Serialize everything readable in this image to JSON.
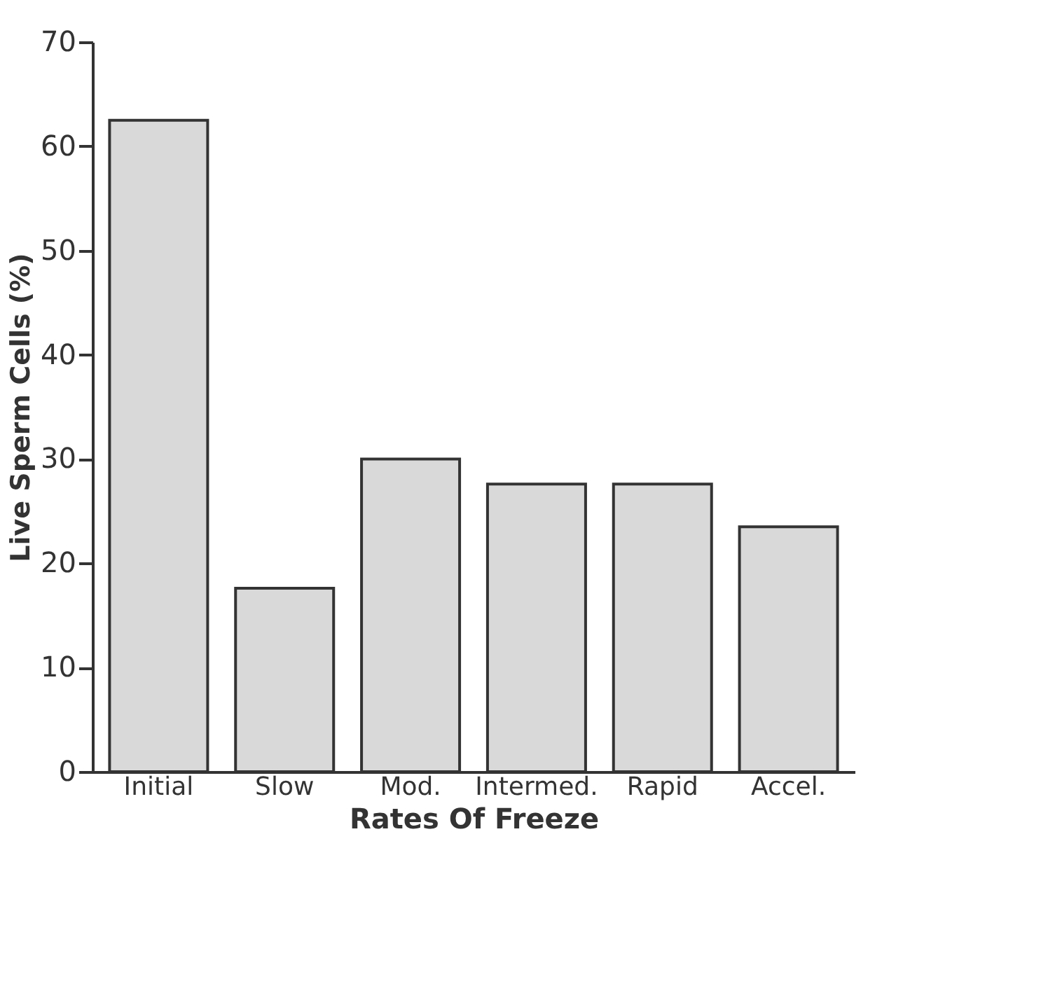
{
  "chart_data": {
    "type": "bar",
    "xlabel": "Rates Of Freeze",
    "ylabel": "Live Sperm Cells (%)",
    "categories": [
      "Initial",
      "Slow",
      "Mod.",
      "Intermed.",
      "Rapid",
      "Accel."
    ],
    "values": [
      62.5,
      17.6,
      30,
      27.6,
      27.6,
      23.5
    ],
    "color": "#d9d9d9",
    "ylim": [
      0,
      70
    ],
    "yticks": [
      0,
      10,
      20,
      30,
      40,
      50,
      60,
      70
    ],
    "grid": false
  }
}
